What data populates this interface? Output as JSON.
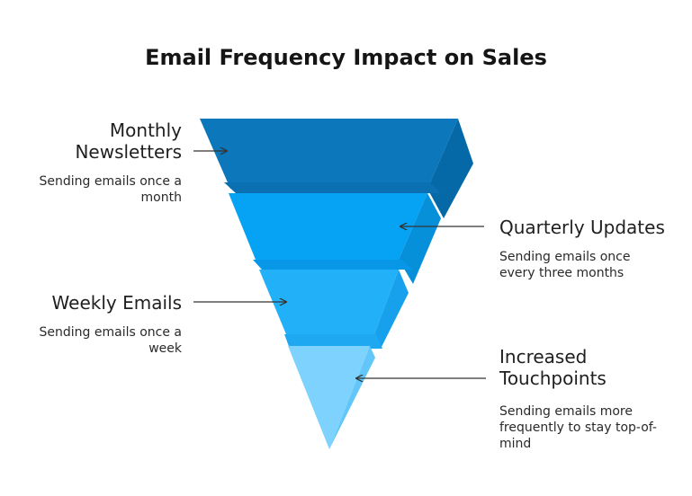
{
  "title": "Email Frequency Impact on Sales",
  "stages": [
    {
      "label": "Monthly Newsletters",
      "description": "Sending emails once a month",
      "color": "#0C78BB"
    },
    {
      "label": "Quarterly Updates",
      "description": "Sending emails once every three months",
      "color": "#06A2F3"
    },
    {
      "label": "Weekly Emails",
      "description": "Sending emails once a week",
      "color": "#22B1F8"
    },
    {
      "label": "Increased Touchpoints",
      "description": "Sending emails more frequently to stay top-of-mind",
      "color": "#7ED3FE"
    }
  ]
}
